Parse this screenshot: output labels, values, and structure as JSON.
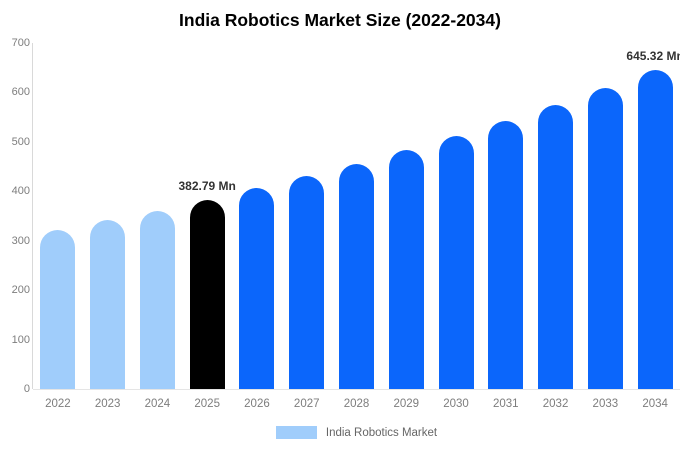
{
  "title": "India Robotics Market Size (2022-2034)",
  "legend": {
    "label": "India Robotics Market",
    "swatch_color": "#a0cdfb"
  },
  "palette": {
    "past": "#a0cdfb",
    "highlight": "#000000",
    "forecast": "#0b66fb"
  },
  "axis": {
    "text_color": "#7d7d7d",
    "line_color": "#d9d9d9"
  },
  "value_label_color": "#333333",
  "chart_data": {
    "type": "bar",
    "title": "India Robotics Market Size (2022-2034)",
    "categories": [
      "2022",
      "2023",
      "2024",
      "2025",
      "2026",
      "2027",
      "2028",
      "2029",
      "2030",
      "2031",
      "2032",
      "2033",
      "2034"
    ],
    "values": [
      322,
      341,
      361,
      382.79,
      406,
      430,
      455,
      483,
      511,
      542,
      574,
      609,
      645.32
    ],
    "unit": "Mn",
    "xlabel": "",
    "ylabel": "",
    "ylim": [
      0,
      700
    ],
    "yticks": [
      0,
      100,
      200,
      300,
      400,
      500,
      600,
      700
    ],
    "grid": false,
    "legend_entries": [
      "India Robotics Market"
    ],
    "legend_position": "bottom",
    "bar_roles": [
      "past",
      "past",
      "past",
      "highlight",
      "forecast",
      "forecast",
      "forecast",
      "forecast",
      "forecast",
      "forecast",
      "forecast",
      "forecast",
      "forecast"
    ],
    "annotations": [
      {
        "category": "2025",
        "text": "382.79 Mn"
      },
      {
        "category": "2034",
        "text": "645.32 Mn"
      }
    ]
  }
}
